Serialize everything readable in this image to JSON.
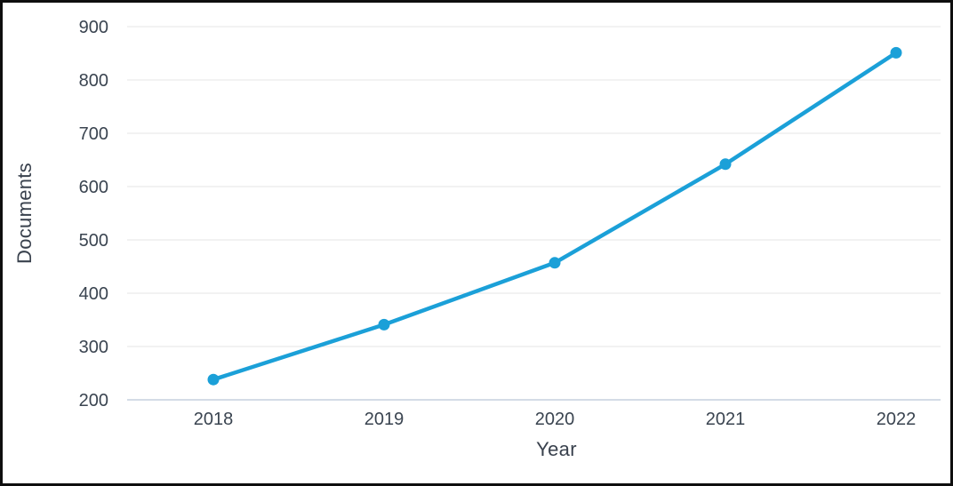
{
  "chart_data": {
    "type": "line",
    "title": "",
    "xlabel": "Year",
    "ylabel": "Documents",
    "x": [
      "2018",
      "2019",
      "2020",
      "2021",
      "2022"
    ],
    "series": [
      {
        "name": "Documents",
        "values": [
          238,
          341,
          457,
          642,
          851
        ]
      }
    ],
    "ylim": [
      200,
      900
    ],
    "yticks": [
      200,
      300,
      400,
      500,
      600,
      700,
      800,
      900
    ],
    "grid": "horizontal",
    "legend": "none",
    "colors": {
      "line": "#1ba0d8",
      "marker": "#1ba0d8",
      "gridline": "#e4e4e4",
      "axis_line": "#c5d0de",
      "tick_text": "#3a4450",
      "axis_title_text": "#39414d",
      "frame_border": "#0e0e0e",
      "background": "#ffffff"
    }
  }
}
